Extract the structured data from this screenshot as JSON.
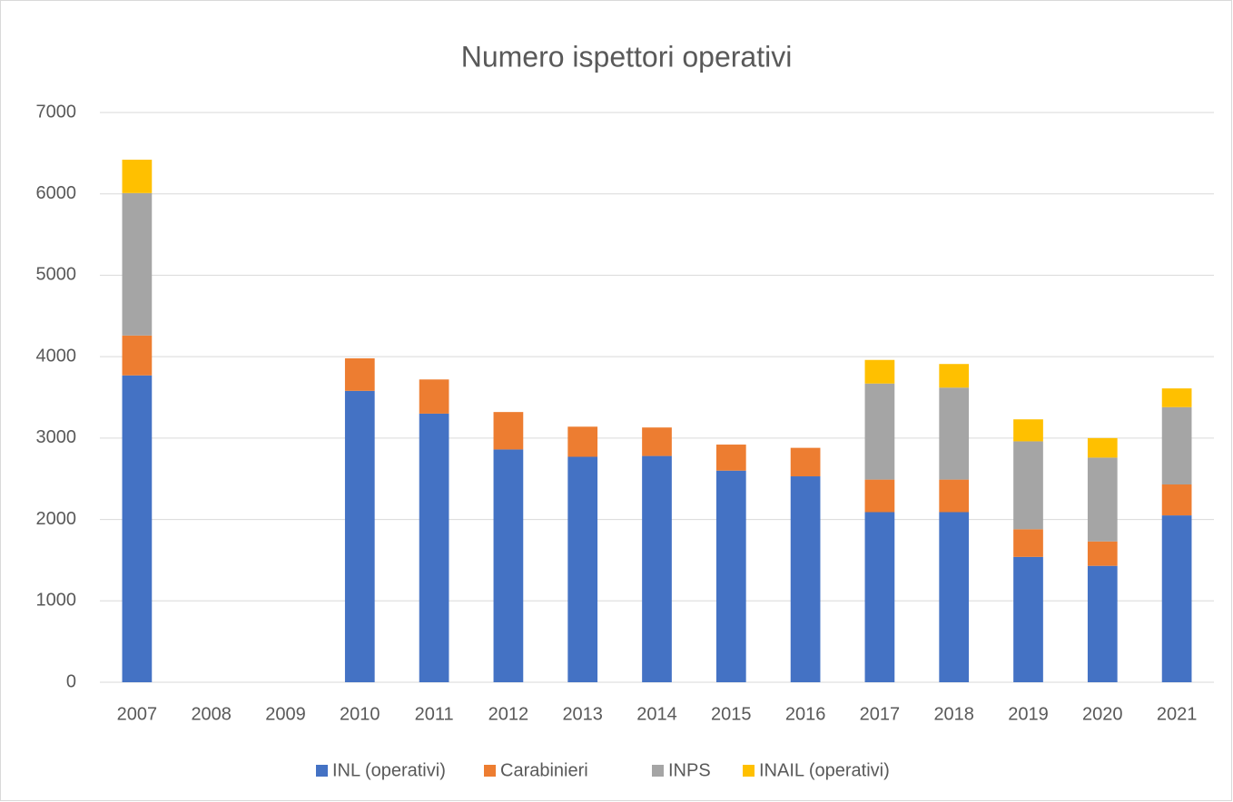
{
  "chart_data": {
    "type": "stacked_bar",
    "title": "Numero ispettori operativi",
    "categories": [
      "2007",
      "2008",
      "2009",
      "2010",
      "2011",
      "2012",
      "2013",
      "2014",
      "2015",
      "2016",
      "2017",
      "2018",
      "2019",
      "2020",
      "2021"
    ],
    "series": [
      {
        "name": "INL (operativi)",
        "color": "#4472c4",
        "values": [
          3770,
          null,
          null,
          3580,
          3300,
          2860,
          2770,
          2780,
          2600,
          2530,
          2090,
          2090,
          1540,
          1430,
          2050
        ]
      },
      {
        "name": "Carabinieri",
        "color": "#ed7d31",
        "values": [
          490,
          null,
          null,
          400,
          420,
          460,
          370,
          350,
          320,
          350,
          400,
          400,
          340,
          300,
          380
        ]
      },
      {
        "name": "INPS",
        "color": "#a5a5a5",
        "values": [
          1750,
          null,
          null,
          null,
          null,
          null,
          null,
          null,
          null,
          null,
          1180,
          1130,
          1080,
          1030,
          950
        ]
      },
      {
        "name": "INAIL (operativi)",
        "color": "#ffc000",
        "values": [
          410,
          null,
          null,
          null,
          null,
          null,
          null,
          null,
          null,
          null,
          290,
          290,
          270,
          240,
          230
        ]
      }
    ],
    "ylim": [
      0,
      7000
    ],
    "yticks": [
      0,
      1000,
      2000,
      3000,
      4000,
      5000,
      6000,
      7000
    ],
    "grid": true,
    "legend": "bottom"
  }
}
